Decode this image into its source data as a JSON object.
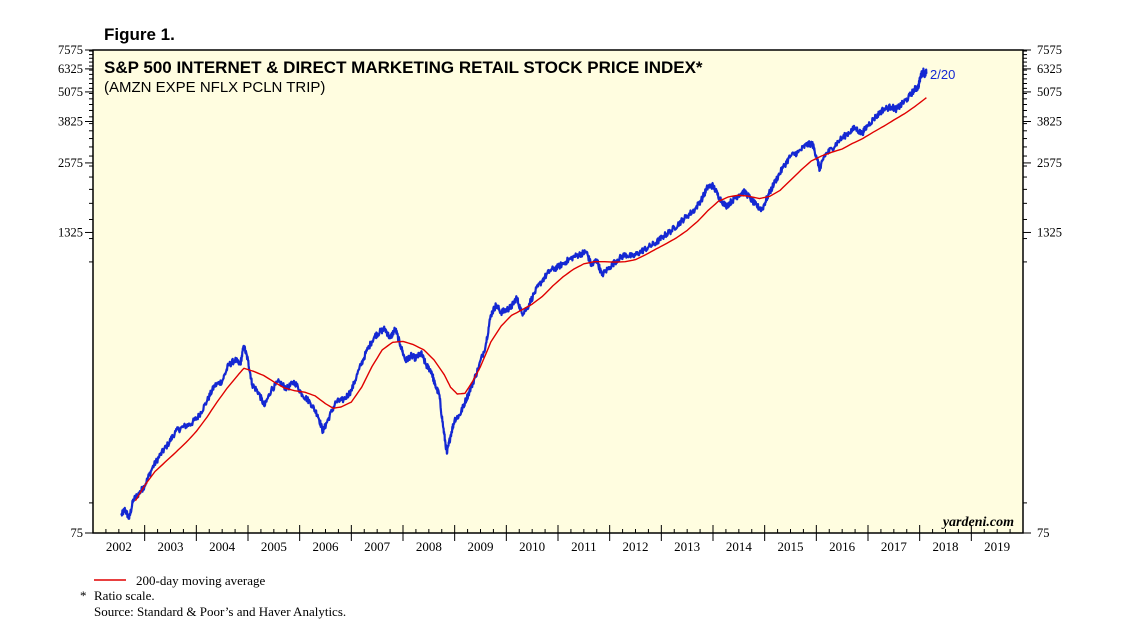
{
  "figure_label": "Figure 1.",
  "chart_data": {
    "type": "line",
    "title": "S&P 500 INTERNET & DIRECT MARKETING RETAIL STOCK PRICE INDEX*",
    "subtitle": "(AMZN EXPE NFLX PCLN TRIP)",
    "scale": "log",
    "ylim": [
      75,
      7575
    ],
    "xlim": [
      2002.0,
      2020.0
    ],
    "y_ticks": [
      75,
      1325,
      2575,
      3825,
      5075,
      6325,
      7575
    ],
    "x_tick_labels": [
      "2002",
      "2003",
      "2004",
      "2005",
      "2006",
      "2007",
      "2008",
      "2009",
      "2010",
      "2011",
      "2012",
      "2013",
      "2014",
      "2015",
      "2016",
      "2017",
      "2018",
      "2019"
    ],
    "end_label": "2/20",
    "brand": "yardeni.com",
    "series": [
      {
        "name": "S&P 500 Internet & Direct Marketing Retail",
        "color": "#1428d2",
        "points": [
          [
            2002.55,
            89
          ],
          [
            2002.62,
            94
          ],
          [
            2002.7,
            86
          ],
          [
            2002.78,
            103
          ],
          [
            2002.9,
            110
          ],
          [
            2003.0,
            118
          ],
          [
            2003.15,
            140
          ],
          [
            2003.3,
            158
          ],
          [
            2003.45,
            175
          ],
          [
            2003.6,
            198
          ],
          [
            2003.75,
            207
          ],
          [
            2003.9,
            213
          ],
          [
            2004.05,
            230
          ],
          [
            2004.2,
            263
          ],
          [
            2004.35,
            306
          ],
          [
            2004.5,
            320
          ],
          [
            2004.62,
            372
          ],
          [
            2004.75,
            392
          ],
          [
            2004.85,
            375
          ],
          [
            2004.92,
            448
          ],
          [
            2005.0,
            390
          ],
          [
            2005.08,
            310
          ],
          [
            2005.2,
            288
          ],
          [
            2005.32,
            252
          ],
          [
            2005.45,
            295
          ],
          [
            2005.6,
            318
          ],
          [
            2005.75,
            298
          ],
          [
            2005.9,
            318
          ],
          [
            2006.05,
            282
          ],
          [
            2006.2,
            262
          ],
          [
            2006.35,
            232
          ],
          [
            2006.45,
            198
          ],
          [
            2006.55,
            222
          ],
          [
            2006.7,
            262
          ],
          [
            2006.85,
            268
          ],
          [
            2007.0,
            292
          ],
          [
            2007.15,
            358
          ],
          [
            2007.3,
            428
          ],
          [
            2007.45,
            492
          ],
          [
            2007.55,
            512
          ],
          [
            2007.65,
            528
          ],
          [
            2007.75,
            482
          ],
          [
            2007.85,
            528
          ],
          [
            2007.95,
            452
          ],
          [
            2008.05,
            388
          ],
          [
            2008.15,
            408
          ],
          [
            2008.25,
            398
          ],
          [
            2008.35,
            418
          ],
          [
            2008.45,
            372
          ],
          [
            2008.55,
            352
          ],
          [
            2008.62,
            308
          ],
          [
            2008.7,
            282
          ],
          [
            2008.78,
            205
          ],
          [
            2008.85,
            160
          ],
          [
            2008.92,
            190
          ],
          [
            2009.0,
            222
          ],
          [
            2009.1,
            232
          ],
          [
            2009.2,
            262
          ],
          [
            2009.32,
            302
          ],
          [
            2009.45,
            358
          ],
          [
            2009.6,
            452
          ],
          [
            2009.7,
            602
          ],
          [
            2009.8,
            662
          ],
          [
            2009.9,
            618
          ],
          [
            2010.0,
            632
          ],
          [
            2010.1,
            652
          ],
          [
            2010.2,
            712
          ],
          [
            2010.3,
            612
          ],
          [
            2010.4,
            642
          ],
          [
            2010.55,
            748
          ],
          [
            2010.7,
            842
          ],
          [
            2010.85,
            922
          ],
          [
            2011.0,
            952
          ],
          [
            2011.15,
            1002
          ],
          [
            2011.3,
            1048
          ],
          [
            2011.45,
            1082
          ],
          [
            2011.55,
            1102
          ],
          [
            2011.65,
            962
          ],
          [
            2011.75,
            1022
          ],
          [
            2011.85,
            882
          ],
          [
            2012.0,
            952
          ],
          [
            2012.15,
            1022
          ],
          [
            2012.3,
            1072
          ],
          [
            2012.45,
            1052
          ],
          [
            2012.6,
            1102
          ],
          [
            2012.75,
            1152
          ],
          [
            2012.9,
            1202
          ],
          [
            2013.05,
            1282
          ],
          [
            2013.2,
            1352
          ],
          [
            2013.35,
            1452
          ],
          [
            2013.5,
            1552
          ],
          [
            2013.65,
            1652
          ],
          [
            2013.8,
            1852
          ],
          [
            2013.9,
            2052
          ],
          [
            2014.0,
            2072
          ],
          [
            2014.12,
            1852
          ],
          [
            2014.25,
            1702
          ],
          [
            2014.38,
            1802
          ],
          [
            2014.5,
            1902
          ],
          [
            2014.62,
            1952
          ],
          [
            2014.75,
            1802
          ],
          [
            2014.85,
            1702
          ],
          [
            2014.95,
            1652
          ],
          [
            2015.05,
            1852
          ],
          [
            2015.2,
            2152
          ],
          [
            2015.35,
            2452
          ],
          [
            2015.5,
            2752
          ],
          [
            2015.65,
            2852
          ],
          [
            2015.8,
            3052
          ],
          [
            2015.92,
            3102
          ],
          [
            2016.0,
            2752
          ],
          [
            2016.07,
            2402
          ],
          [
            2016.15,
            2752
          ],
          [
            2016.3,
            2952
          ],
          [
            2016.45,
            3202
          ],
          [
            2016.6,
            3402
          ],
          [
            2016.75,
            3602
          ],
          [
            2016.88,
            3402
          ],
          [
            2017.0,
            3702
          ],
          [
            2017.15,
            4002
          ],
          [
            2017.3,
            4302
          ],
          [
            2017.45,
            4402
          ],
          [
            2017.55,
            4302
          ],
          [
            2017.65,
            4502
          ],
          [
            2017.78,
            4802
          ],
          [
            2017.9,
            5202
          ],
          [
            2017.97,
            5302
          ],
          [
            2018.02,
            5902
          ],
          [
            2018.07,
            6202
          ],
          [
            2018.1,
            5950
          ],
          [
            2018.13,
            6150
          ]
        ]
      },
      {
        "name": "200-day moving average",
        "color": "#e00000",
        "points": [
          [
            2002.82,
            102
          ],
          [
            2003.0,
            118
          ],
          [
            2003.2,
            135
          ],
          [
            2003.4,
            148
          ],
          [
            2003.6,
            162
          ],
          [
            2003.8,
            178
          ],
          [
            2004.0,
            198
          ],
          [
            2004.2,
            226
          ],
          [
            2004.4,
            262
          ],
          [
            2004.6,
            300
          ],
          [
            2004.8,
            338
          ],
          [
            2004.92,
            362
          ],
          [
            2005.1,
            352
          ],
          [
            2005.3,
            338
          ],
          [
            2005.5,
            318
          ],
          [
            2005.7,
            300
          ],
          [
            2005.9,
            292
          ],
          [
            2006.1,
            288
          ],
          [
            2006.3,
            278
          ],
          [
            2006.5,
            258
          ],
          [
            2006.65,
            247
          ],
          [
            2006.8,
            250
          ],
          [
            2007.0,
            262
          ],
          [
            2007.2,
            302
          ],
          [
            2007.4,
            368
          ],
          [
            2007.6,
            432
          ],
          [
            2007.8,
            464
          ],
          [
            2008.0,
            468
          ],
          [
            2008.2,
            454
          ],
          [
            2008.4,
            432
          ],
          [
            2008.6,
            392
          ],
          [
            2008.8,
            340
          ],
          [
            2008.92,
            302
          ],
          [
            2009.05,
            283
          ],
          [
            2009.2,
            285
          ],
          [
            2009.35,
            320
          ],
          [
            2009.5,
            368
          ],
          [
            2009.7,
            465
          ],
          [
            2009.9,
            542
          ],
          [
            2010.1,
            600
          ],
          [
            2010.3,
            632
          ],
          [
            2010.5,
            668
          ],
          [
            2010.7,
            720
          ],
          [
            2010.9,
            795
          ],
          [
            2011.1,
            868
          ],
          [
            2011.3,
            932
          ],
          [
            2011.5,
            982
          ],
          [
            2011.7,
            1002
          ],
          [
            2011.9,
            1002
          ],
          [
            2012.1,
            998
          ],
          [
            2012.3,
            1002
          ],
          [
            2012.5,
            1022
          ],
          [
            2012.7,
            1072
          ],
          [
            2012.9,
            1132
          ],
          [
            2013.1,
            1192
          ],
          [
            2013.3,
            1262
          ],
          [
            2013.5,
            1352
          ],
          [
            2013.7,
            1472
          ],
          [
            2013.9,
            1632
          ],
          [
            2014.1,
            1782
          ],
          [
            2014.3,
            1862
          ],
          [
            2014.5,
            1892
          ],
          [
            2014.7,
            1872
          ],
          [
            2014.9,
            1832
          ],
          [
            2015.1,
            1872
          ],
          [
            2015.3,
            1982
          ],
          [
            2015.5,
            2182
          ],
          [
            2015.7,
            2402
          ],
          [
            2015.9,
            2622
          ],
          [
            2016.1,
            2752
          ],
          [
            2016.3,
            2852
          ],
          [
            2016.5,
            2942
          ],
          [
            2016.7,
            3102
          ],
          [
            2016.9,
            3252
          ],
          [
            2017.1,
            3452
          ],
          [
            2017.3,
            3652
          ],
          [
            2017.5,
            3882
          ],
          [
            2017.7,
            4112
          ],
          [
            2017.9,
            4402
          ],
          [
            2018.13,
            4802
          ]
        ]
      }
    ]
  },
  "legend": {
    "ma_label": "200-day moving average",
    "ratio_marker": "*",
    "ratio_note": "Ratio scale.",
    "source": "Source: Standard & Poor’s and Haver Analytics."
  }
}
